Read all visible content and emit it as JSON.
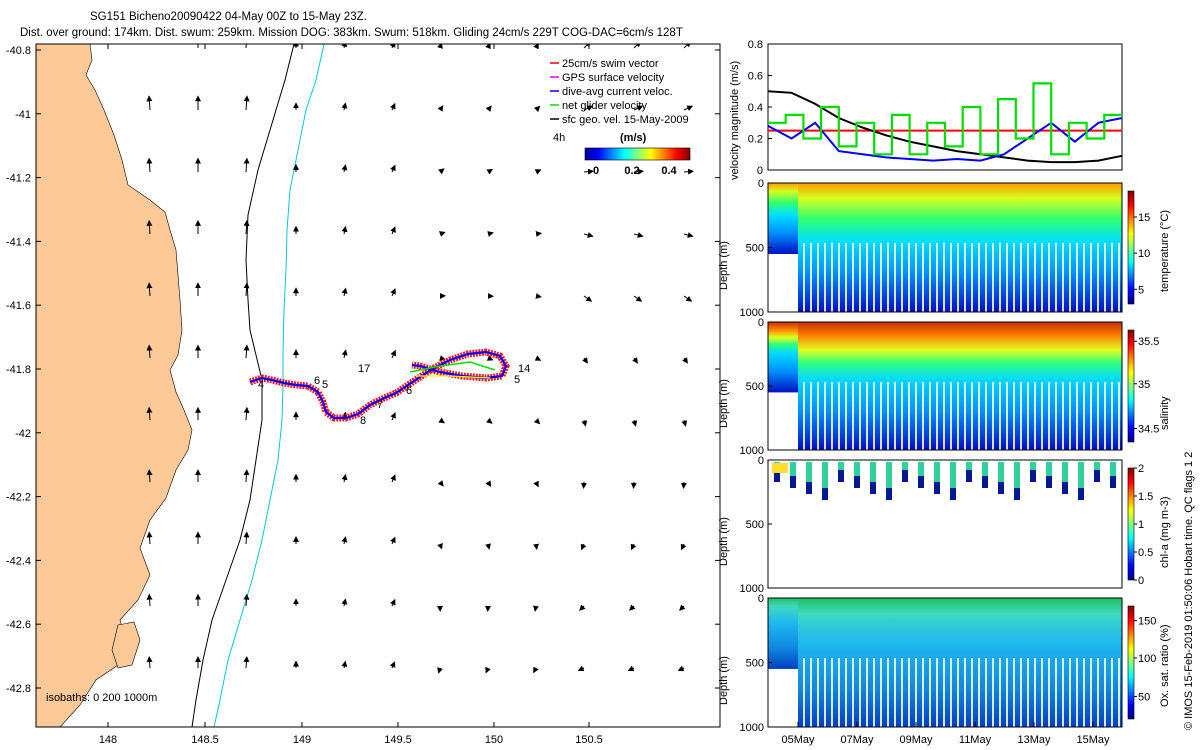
{
  "header": {
    "line1": "SG151 Bicheno20090422 04-May 00Z to 15-May 23Z.",
    "line2": "Dist. over ground: 174km. Dist. swum: 259km. Mission DOG: 383km. Swum: 518km. Gliding 24cm/s 229T COG-DAC=6cm/s 128T"
  },
  "side_note": "© IMOS 15-Feb-2019 01:50:06 Hobart time. QC flags 1  2",
  "map": {
    "x_ticks": [
      "148",
      "148.5",
      "149",
      "149.5",
      "150",
      "150.5"
    ],
    "y_ticks": [
      "-40.8",
      "-41",
      "-41.2",
      "-41.4",
      "-41.6",
      "-41.8",
      "-42",
      "-42.2",
      "-42.4",
      "-42.6",
      "-42.8"
    ],
    "legend": [
      {
        "label": "25cm/s swim vector",
        "color": "#ff0000"
      },
      {
        "label": "GPS surface velocity",
        "color": "#ff00ff"
      },
      {
        "label": "dive-avg current veloc.",
        "color": "#0000ff"
      },
      {
        "label": "net glider velocity",
        "color": "#00dd00"
      },
      {
        "label": "sfc geo. vel. 15-May-2009",
        "color": "#000000"
      }
    ],
    "legend_prefix": "4h",
    "colorbar_title": "(m/s)",
    "colorbar_ticks": [
      "0",
      "0.2",
      "0.4"
    ],
    "isobaths_label": "isobaths: 0   200   1000m",
    "day_labels": [
      "17",
      "14",
      "5",
      "6",
      "7",
      "8",
      "6",
      "4",
      "5"
    ],
    "colors": {
      "land": "#fcc997",
      "isobath_200": "#000000",
      "isobath_1000": "#00cccc"
    }
  },
  "chart_data": [
    {
      "type": "line",
      "title": "",
      "ylabel": "velocity magnitude (m/s)",
      "ylim": [
        0,
        0.8
      ],
      "y_ticks": [
        "0",
        "0.2",
        "0.4",
        "0.6",
        "0.8"
      ],
      "series": [
        {
          "color": "#ff0000",
          "values": [
            0.25,
            0.25
          ]
        },
        {
          "color": "#000000",
          "values": [
            0.5,
            0.49,
            0.42,
            0.33,
            0.27,
            0.22,
            0.18,
            0.15,
            0.12,
            0.1,
            0.08,
            0.06,
            0.05,
            0.05,
            0.06,
            0.09
          ]
        },
        {
          "color": "#0000ff",
          "values": [
            0.28,
            0.2,
            0.3,
            0.12,
            0.1,
            0.08,
            0.07,
            0.06,
            0.07,
            0.06,
            0.1,
            0.2,
            0.3,
            0.18,
            0.3,
            0.33
          ]
        },
        {
          "color": "#00dd00",
          "values": [
            0.3,
            0.35,
            0.2,
            0.4,
            0.15,
            0.3,
            0.1,
            0.35,
            0.1,
            0.3,
            0.15,
            0.4,
            0.1,
            0.45,
            0.2,
            0.55,
            0.1,
            0.3,
            0.2,
            0.35
          ]
        }
      ]
    },
    {
      "type": "heatmap",
      "xlabel": "",
      "ylabel": "Depth (m)",
      "y_ticks": [
        "0",
        "500",
        "1000"
      ],
      "colorbar_label": "temperature (°C)",
      "colorbar_ticks": [
        "5",
        "10",
        "15"
      ]
    },
    {
      "type": "heatmap",
      "ylabel": "Depth (m)",
      "y_ticks": [
        "0",
        "500",
        "1000"
      ],
      "colorbar_label": "salinity",
      "colorbar_ticks": [
        "34.5",
        "35",
        "35.5"
      ]
    },
    {
      "type": "heatmap",
      "ylabel": "Depth (m)",
      "y_ticks": [
        "0",
        "500",
        "1000"
      ],
      "colorbar_label": "chl-a (mg m-3)",
      "colorbar_ticks": [
        "0",
        "0.5",
        "1",
        "1.5",
        "2"
      ]
    },
    {
      "type": "heatmap",
      "ylabel": "Depth (m)",
      "y_ticks": [
        "0",
        "500",
        "1000"
      ],
      "colorbar_label": "Ox. sat. ratio (%)",
      "colorbar_ticks": [
        "50",
        "100",
        "150"
      ],
      "x_ticks": [
        "05May",
        "07May",
        "09May",
        "11May",
        "13May",
        "15May"
      ]
    }
  ]
}
